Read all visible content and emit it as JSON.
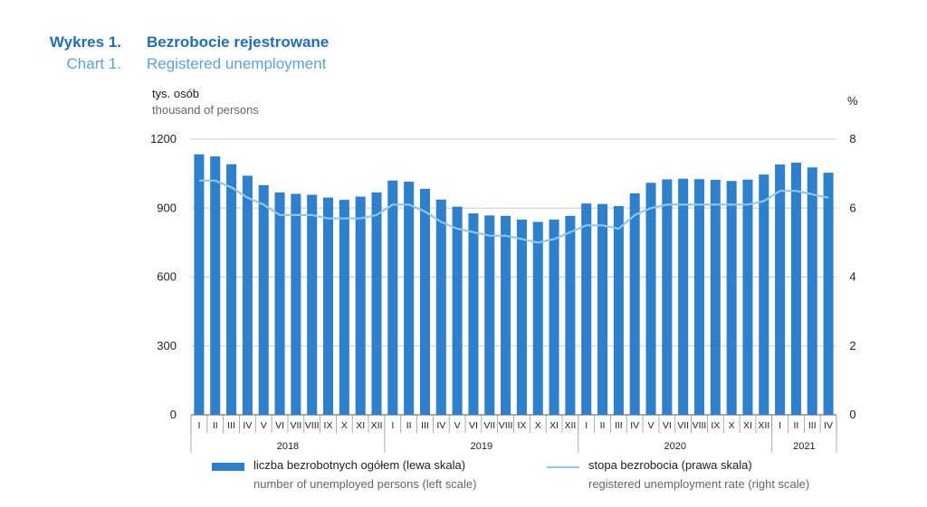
{
  "title": {
    "pl_label": "Wykres 1.",
    "pl_text": "Bezrobocie rejestrowane",
    "en_label": "Chart 1.",
    "en_text": "Registered unemployment"
  },
  "left_axis": {
    "unit_pl": "tys. osób",
    "unit_en": "thousand of persons"
  },
  "right_axis": {
    "unit": "%"
  },
  "legend": {
    "bars_pl": "liczba bezrobotnych ogółem (lewa skala)",
    "bars_en": "number of unemployed persons (left scale)",
    "line_pl": "stopa bezrobocia (prawa skala)",
    "line_en": "registered unemployment rate (right scale)"
  },
  "colors": {
    "bar": "#2e7fcc",
    "line": "#8ec7f0",
    "grid": "#cccccc",
    "axis": "#555555"
  },
  "chart_data": {
    "type": "bar",
    "categories": [
      "I",
      "II",
      "III",
      "IV",
      "V",
      "VI",
      "VII",
      "VIII",
      "IX",
      "X",
      "XI",
      "XII",
      "I",
      "II",
      "III",
      "IV",
      "V",
      "VI",
      "VII",
      "VIII",
      "IX",
      "X",
      "XI",
      "XII",
      "I",
      "II",
      "III",
      "IV",
      "V",
      "VI",
      "VII",
      "VIII",
      "IX",
      "X",
      "XI",
      "XII",
      "I",
      "II",
      "III",
      "IV"
    ],
    "years": [
      {
        "label": "2018",
        "count": 12
      },
      {
        "label": "2019",
        "count": 12
      },
      {
        "label": "2020",
        "count": 12
      },
      {
        "label": "2021",
        "count": 4
      }
    ],
    "series": [
      {
        "type": "bar",
        "axis": "left",
        "values": [
          1134,
          1125,
          1091,
          1041,
          1000,
          968,
          962,
          958,
          946,
          936,
          950,
          968,
          1020,
          1015,
          984,
          937,
          906,
          877,
          868,
          866,
          850,
          840,
          850,
          866,
          920,
          918,
          909,
          964,
          1010,
          1025,
          1028,
          1026,
          1023,
          1018,
          1024,
          1046,
          1090,
          1098,
          1077,
          1054
        ]
      },
      {
        "type": "line",
        "axis": "right",
        "values": [
          6.8,
          6.8,
          6.6,
          6.3,
          6.1,
          5.8,
          5.8,
          5.8,
          5.7,
          5.7,
          5.7,
          5.8,
          6.1,
          6.1,
          5.9,
          5.6,
          5.4,
          5.3,
          5.2,
          5.2,
          5.1,
          5.0,
          5.1,
          5.3,
          5.5,
          5.5,
          5.4,
          5.8,
          6.0,
          6.1,
          6.1,
          6.1,
          6.1,
          6.1,
          6.1,
          6.2,
          6.5,
          6.5,
          6.4,
          6.3
        ]
      }
    ],
    "left_ticks": [
      0,
      300,
      600,
      900,
      1200
    ],
    "right_ticks": [
      0,
      2,
      4,
      6,
      8
    ],
    "ylim_left": [
      0,
      1200
    ],
    "ylim_right": [
      0,
      8
    ],
    "grid": true
  }
}
